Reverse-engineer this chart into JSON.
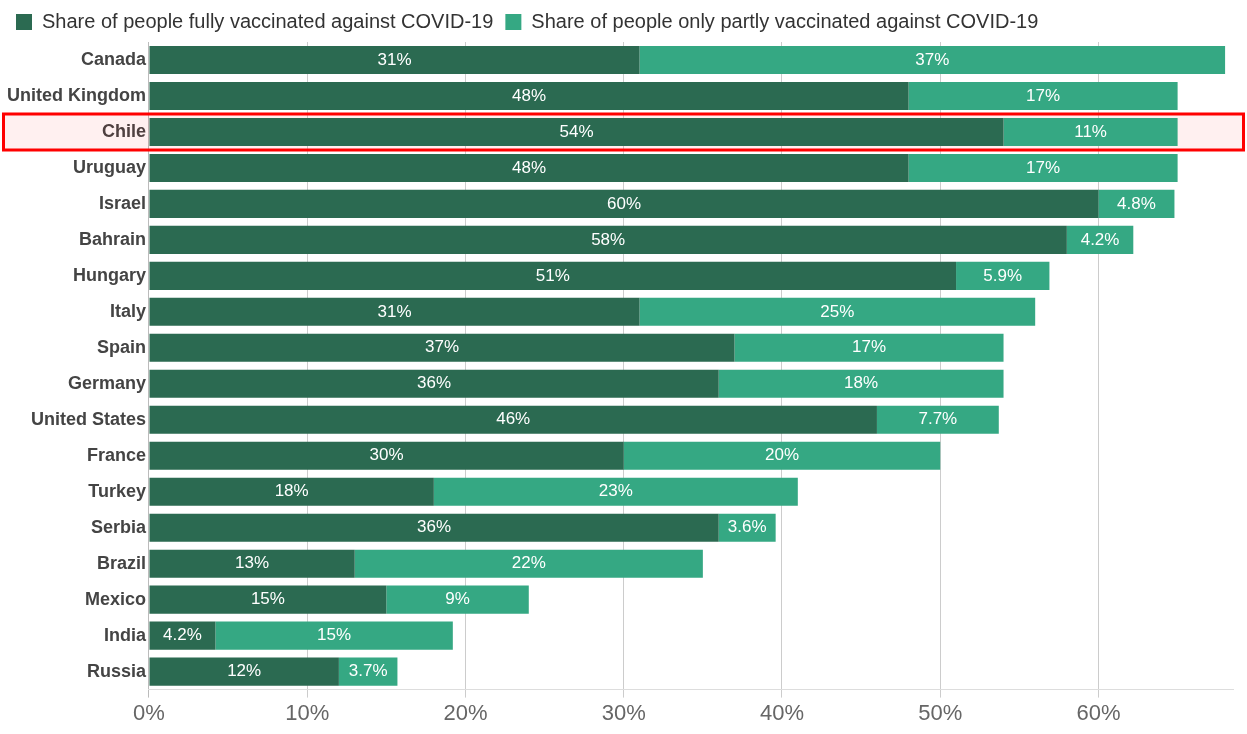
{
  "chart_data": {
    "type": "bar",
    "orientation": "horizontal",
    "stacked": true,
    "categories": [
      "Canada",
      "United Kingdom",
      "Chile",
      "Uruguay",
      "Israel",
      "Bahrain",
      "Hungary",
      "Italy",
      "Spain",
      "Germany",
      "United States",
      "France",
      "Turkey",
      "Serbia",
      "Brazil",
      "Mexico",
      "India",
      "Russia"
    ],
    "series": [
      {
        "name": "Share of people fully vaccinated against COVID-19",
        "color": "#2b6a51",
        "values": [
          31,
          48,
          54,
          48,
          60,
          58,
          51,
          31,
          37,
          36,
          46,
          30,
          18,
          36,
          13,
          15,
          4.2,
          12
        ],
        "value_labels": [
          "31%",
          "48%",
          "54%",
          "48%",
          "60%",
          "58%",
          "51%",
          "31%",
          "37%",
          "36%",
          "46%",
          "30%",
          "18%",
          "36%",
          "13%",
          "15%",
          "4.2%",
          "12%"
        ]
      },
      {
        "name": "Share of people only partly vaccinated against COVID-19",
        "color": "#35a883",
        "values": [
          37,
          17,
          11,
          17,
          4.8,
          4.2,
          5.9,
          25,
          17,
          18,
          7.7,
          20,
          23,
          3.6,
          22,
          9,
          15,
          3.7
        ],
        "value_labels": [
          "37%",
          "17%",
          "11%",
          "17%",
          "4.8%",
          "4.2%",
          "5.9%",
          "25%",
          "17%",
          "18%",
          "7.7%",
          "20%",
          "23%",
          "3.6%",
          "22%",
          "9%",
          "15%",
          "3.7%"
        ]
      }
    ],
    "xlim": [
      0,
      68.5
    ],
    "xticks": [
      {
        "value": 0,
        "label": "0%"
      },
      {
        "value": 10,
        "label": "10%"
      },
      {
        "value": 20,
        "label": "20%"
      },
      {
        "value": 30,
        "label": "30%"
      },
      {
        "value": 40,
        "label": "40%"
      },
      {
        "value": 50,
        "label": "50%"
      },
      {
        "value": 60,
        "label": "60%"
      }
    ],
    "grid": "x",
    "legend": "top left",
    "bands": [
      {
        "axis": "y",
        "from": "Chile",
        "to": "Chile",
        "color": "#ff0000"
      }
    ]
  }
}
